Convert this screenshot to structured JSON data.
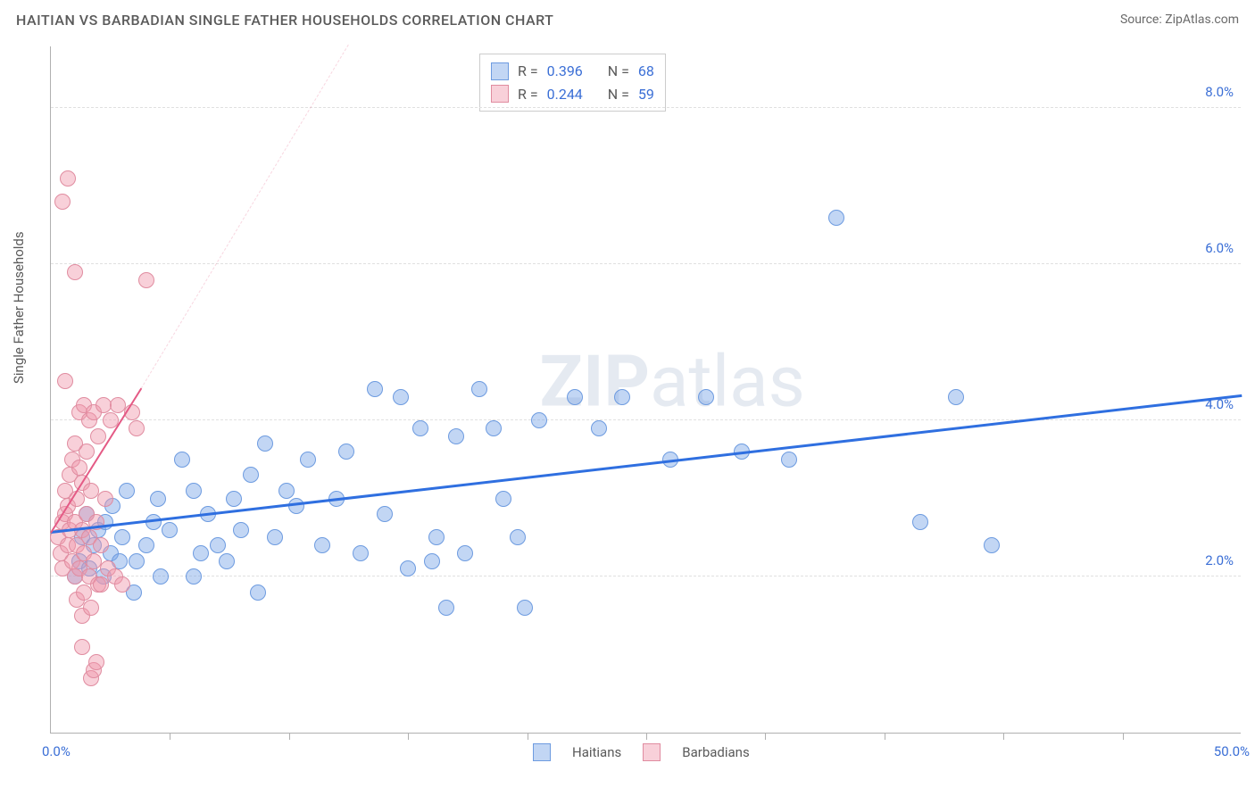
{
  "title": "HAITIAN VS BARBADIAN SINGLE FATHER HOUSEHOLDS CORRELATION CHART",
  "source": "Source: ZipAtlas.com",
  "y_axis_label": "Single Father Households",
  "watermark_bold": "ZIP",
  "watermark_rest": "atlas",
  "chart": {
    "type": "scatter",
    "background_color": "#ffffff",
    "grid_color": "#e0e0e0",
    "axis_color": "#b0b0b0",
    "tick_label_color": "#3b6fd6",
    "axis_label_color": "#5a5a5a",
    "xlim": [
      0,
      50
    ],
    "ylim": [
      0,
      8.8
    ],
    "x_tick_label_min": "0.0%",
    "x_tick_label_max": "50.0%",
    "x_minor_ticks": [
      5,
      10,
      15,
      20,
      25,
      30,
      35,
      40,
      45
    ],
    "y_ticks": [
      2.0,
      4.0,
      6.0,
      8.0
    ],
    "y_tick_labels": [
      "2.0%",
      "4.0%",
      "6.0%",
      "8.0%"
    ],
    "marker_radius": 9,
    "series": [
      {
        "name": "Haitians",
        "fill": "rgba(120,165,230,0.45)",
        "stroke": "#6d9be0",
        "points": [
          [
            1.2,
            2.2
          ],
          [
            1.3,
            2.5
          ],
          [
            1.5,
            2.8
          ],
          [
            1.8,
            2.4
          ],
          [
            2.0,
            2.6
          ],
          [
            2.3,
            2.7
          ],
          [
            2.5,
            2.3
          ],
          [
            2.6,
            2.9
          ],
          [
            3.0,
            2.5
          ],
          [
            3.2,
            3.1
          ],
          [
            3.6,
            2.2
          ],
          [
            4.0,
            2.4
          ],
          [
            4.3,
            2.7
          ],
          [
            4.5,
            3.0
          ],
          [
            5.0,
            2.6
          ],
          [
            5.5,
            3.5
          ],
          [
            6.0,
            3.1
          ],
          [
            6.3,
            2.3
          ],
          [
            6.6,
            2.8
          ],
          [
            7.0,
            2.4
          ],
          [
            7.4,
            2.2
          ],
          [
            7.7,
            3.0
          ],
          [
            8.0,
            2.6
          ],
          [
            8.4,
            3.3
          ],
          [
            8.7,
            1.8
          ],
          [
            9.0,
            3.7
          ],
          [
            9.4,
            2.5
          ],
          [
            9.9,
            3.1
          ],
          [
            10.3,
            2.9
          ],
          [
            10.8,
            3.5
          ],
          [
            11.4,
            2.4
          ],
          [
            12.0,
            3.0
          ],
          [
            12.4,
            3.6
          ],
          [
            13.0,
            2.3
          ],
          [
            13.6,
            4.4
          ],
          [
            14.0,
            2.8
          ],
          [
            14.7,
            4.3
          ],
          [
            15.0,
            2.1
          ],
          [
            15.5,
            3.9
          ],
          [
            16.0,
            2.2
          ],
          [
            16.2,
            2.5
          ],
          [
            16.6,
            1.6
          ],
          [
            17.0,
            3.8
          ],
          [
            17.4,
            2.3
          ],
          [
            18.0,
            4.4
          ],
          [
            18.6,
            3.9
          ],
          [
            19.0,
            3.0
          ],
          [
            19.6,
            2.5
          ],
          [
            19.9,
            1.6
          ],
          [
            20.5,
            4.0
          ],
          [
            22.0,
            4.3
          ],
          [
            23.0,
            3.9
          ],
          [
            24.0,
            4.3
          ],
          [
            26.0,
            3.5
          ],
          [
            27.5,
            4.3
          ],
          [
            29.0,
            3.6
          ],
          [
            31.0,
            3.5
          ],
          [
            33.0,
            6.6
          ],
          [
            36.5,
            2.7
          ],
          [
            38.0,
            4.3
          ],
          [
            39.5,
            2.4
          ],
          [
            1.0,
            2.0
          ],
          [
            1.6,
            2.1
          ],
          [
            2.2,
            2.0
          ],
          [
            2.9,
            2.2
          ],
          [
            3.5,
            1.8
          ],
          [
            4.6,
            2.0
          ],
          [
            6.0,
            2.0
          ]
        ],
        "trend": {
          "color": "#2f6fe0",
          "width": 2.5,
          "x1": 0,
          "y1": 2.55,
          "x2": 50,
          "y2": 4.3
        },
        "stats": {
          "R": "0.396",
          "N": "68"
        }
      },
      {
        "name": "Barbadians",
        "fill": "rgba(240,150,170,0.45)",
        "stroke": "#e08ca0",
        "points": [
          [
            0.3,
            2.5
          ],
          [
            0.4,
            2.3
          ],
          [
            0.5,
            2.7
          ],
          [
            0.5,
            2.1
          ],
          [
            0.6,
            2.8
          ],
          [
            0.6,
            3.1
          ],
          [
            0.7,
            2.4
          ],
          [
            0.7,
            2.9
          ],
          [
            0.8,
            2.6
          ],
          [
            0.8,
            3.3
          ],
          [
            0.9,
            2.2
          ],
          [
            0.9,
            3.5
          ],
          [
            1.0,
            2.0
          ],
          [
            1.0,
            2.7
          ],
          [
            1.0,
            3.7
          ],
          [
            1.1,
            1.7
          ],
          [
            1.1,
            2.4
          ],
          [
            1.1,
            3.0
          ],
          [
            1.2,
            2.1
          ],
          [
            1.2,
            3.4
          ],
          [
            1.2,
            4.1
          ],
          [
            1.3,
            1.5
          ],
          [
            1.3,
            2.6
          ],
          [
            1.3,
            3.2
          ],
          [
            1.4,
            1.8
          ],
          [
            1.4,
            2.3
          ],
          [
            1.4,
            4.2
          ],
          [
            1.5,
            2.8
          ],
          [
            1.5,
            3.6
          ],
          [
            1.6,
            2.0
          ],
          [
            1.6,
            2.5
          ],
          [
            1.6,
            4.0
          ],
          [
            1.7,
            1.6
          ],
          [
            1.7,
            3.1
          ],
          [
            1.8,
            2.2
          ],
          [
            1.8,
            4.1
          ],
          [
            1.9,
            2.7
          ],
          [
            2.0,
            1.9
          ],
          [
            2.0,
            3.8
          ],
          [
            2.1,
            2.4
          ],
          [
            2.2,
            4.2
          ],
          [
            2.3,
            3.0
          ],
          [
            2.5,
            4.0
          ],
          [
            2.8,
            4.2
          ],
          [
            3.4,
            4.1
          ],
          [
            3.6,
            3.9
          ],
          [
            1.7,
            0.7
          ],
          [
            1.8,
            0.8
          ],
          [
            1.9,
            0.9
          ],
          [
            1.3,
            1.1
          ],
          [
            0.6,
            4.5
          ],
          [
            0.5,
            6.8
          ],
          [
            0.7,
            7.1
          ],
          [
            1.0,
            5.9
          ],
          [
            4.0,
            5.8
          ],
          [
            2.1,
            1.9
          ],
          [
            2.4,
            2.1
          ],
          [
            2.7,
            2.0
          ],
          [
            3.0,
            1.9
          ]
        ],
        "trend": {
          "color": "#e45a85",
          "width": 2,
          "x1": 0,
          "y1": 2.55,
          "x2": 3.8,
          "y2": 4.4
        },
        "trend_dashed": {
          "color": "rgba(228,90,133,0.25)",
          "width": 1.5,
          "x1": 3.8,
          "y1": 4.4,
          "x2": 12.5,
          "y2": 8.8
        },
        "stats": {
          "R": "0.244",
          "N": "59"
        }
      }
    ]
  },
  "legend": {
    "series1_label": "Haitians",
    "series2_label": "Barbadians"
  },
  "stats_labels": {
    "R": "R =",
    "N": "N ="
  }
}
